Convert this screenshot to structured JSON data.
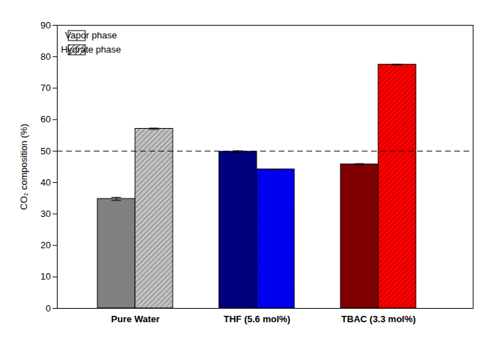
{
  "chart_data": {
    "type": "bar",
    "categories": [
      "Pure Water",
      "THF (5.6 mol%)",
      "TBAC (3.3 mol%)"
    ],
    "y_label": "CO₂ composition (%)",
    "series": [
      {
        "name": "Vapor phase",
        "marker": "solid",
        "colors": [
          "#808080",
          "#00007f",
          "#7f0000"
        ],
        "values": [
          34.8,
          49.8,
          45.8
        ],
        "errors": [
          0.5,
          0.3,
          0.2
        ]
      },
      {
        "name": "Hydrate phase",
        "marker": "hatch",
        "colors": [
          "#c0c0c0",
          "#0000ff",
          "#ff0000"
        ],
        "values": [
          57.1,
          44.2,
          77.5
        ],
        "errors": [
          0.2,
          0.1,
          0.1
        ]
      }
    ],
    "ylim": [
      0,
      90
    ],
    "yticks": [
      0,
      10,
      20,
      30,
      40,
      50,
      60,
      70,
      80,
      90
    ],
    "legend": "upper left",
    "reference_line": {
      "value": 50,
      "line_style": "dashed"
    }
  }
}
